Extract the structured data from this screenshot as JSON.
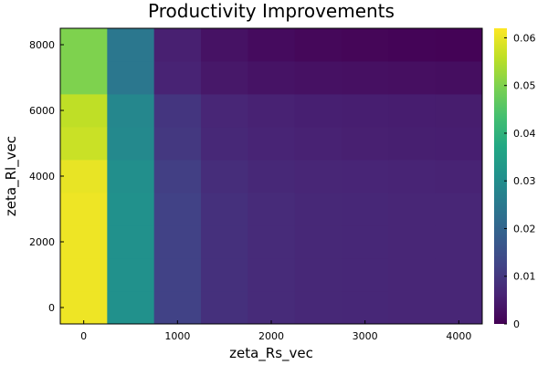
{
  "chart_data": {
    "type": "heatmap",
    "title": "Productivity Improvements",
    "xlabel": "zeta_Rs_vec",
    "ylabel": "zeta_Rl_vec",
    "x": [
      0,
      500,
      1000,
      1500,
      2000,
      2500,
      3000,
      3500,
      4000
    ],
    "y": [
      0,
      1000,
      2000,
      3000,
      4000,
      5000,
      6000,
      7000,
      8000
    ],
    "xlim": [
      -250,
      4250
    ],
    "ylim": [
      -500,
      8500
    ],
    "x_ticks": [
      0,
      1000,
      2000,
      3000,
      4000
    ],
    "y_ticks": [
      0,
      2000,
      4000,
      6000,
      8000
    ],
    "x_tick_labels": [
      "0",
      "1000",
      "2000",
      "3000",
      "4000"
    ],
    "y_tick_labels": [
      "0",
      "2000",
      "4000",
      "6000",
      "8000"
    ],
    "z": [
      [
        0.0605,
        0.031,
        0.012,
        0.0085,
        0.0075,
        0.007,
        0.0068,
        0.0066,
        0.0065
      ],
      [
        0.0605,
        0.031,
        0.012,
        0.0085,
        0.0075,
        0.007,
        0.0068,
        0.0066,
        0.0065
      ],
      [
        0.0605,
        0.031,
        0.012,
        0.0085,
        0.0075,
        0.007,
        0.0068,
        0.0066,
        0.0065
      ],
      [
        0.0605,
        0.031,
        0.012,
        0.0085,
        0.0075,
        0.007,
        0.0068,
        0.0066,
        0.0065
      ],
      [
        0.06,
        0.0305,
        0.0115,
        0.008,
        0.007,
        0.0066,
        0.0064,
        0.0062,
        0.0061
      ],
      [
        0.057,
        0.029,
        0.01,
        0.007,
        0.0062,
        0.0058,
        0.0055,
        0.0053,
        0.0052
      ],
      [
        0.056,
        0.0285,
        0.0095,
        0.0065,
        0.0058,
        0.0054,
        0.0052,
        0.005,
        0.0049
      ],
      [
        0.05,
        0.0245,
        0.006,
        0.004,
        0.0032,
        0.0028,
        0.0026,
        0.0024,
        0.0023
      ],
      [
        0.05,
        0.0245,
        0.0055,
        0.003,
        0.0018,
        0.0012,
        0.0008,
        0.0005,
        0.0003
      ]
    ],
    "colorscale": "viridis",
    "colorbar_range": [
      0,
      0.062
    ],
    "colorbar_ticks": [
      0,
      0.01,
      0.02,
      0.03,
      0.04,
      0.05,
      0.06
    ],
    "colorbar_tick_labels": [
      "0",
      "0.01",
      "0.02",
      "0.03",
      "0.04",
      "0.05",
      "0.06"
    ],
    "grid": false,
    "legend": "colorbar-right"
  }
}
